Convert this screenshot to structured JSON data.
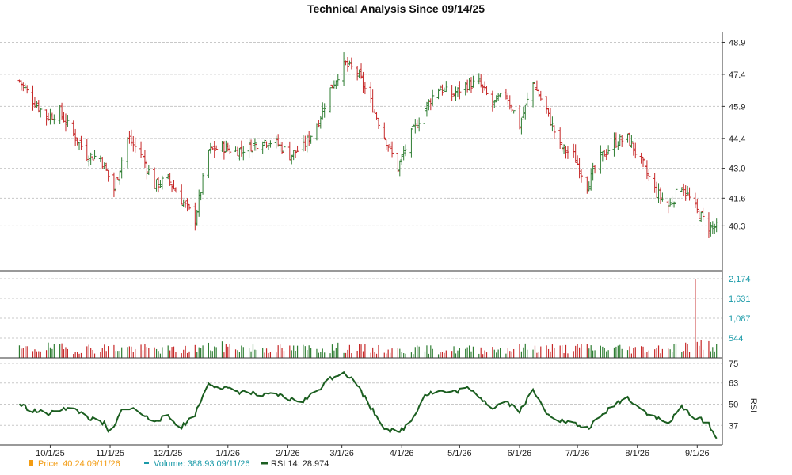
{
  "chart_data": {
    "type": "ohlc",
    "title": "Technical Analysis Since 09/14/25",
    "x_tick_labels": [
      "10/1/25",
      "11/1/25",
      "12/1/25",
      "1/1/26",
      "2/1/26",
      "3/1/26",
      "4/1/26",
      "5/1/26",
      "6/1/26",
      "7/1/26",
      "8/1/26",
      "9/1/26"
    ],
    "price_axis": {
      "ticks": [
        "48.9",
        "47.4",
        "45.9",
        "44.4",
        "43.0",
        "41.6",
        "40.3"
      ],
      "range": [
        38.2,
        49.4
      ]
    },
    "volume_axis": {
      "ticks": [
        "2,174",
        "1,631",
        "1,087",
        "544"
      ],
      "range": [
        0,
        2174
      ]
    },
    "rsi_axis": {
      "label": "RSI",
      "ticks": [
        "75",
        "63",
        "50",
        "37"
      ],
      "range": [
        25,
        75
      ]
    },
    "colors": {
      "up": "#2e7d32",
      "down": "#c62828",
      "volume_line": "#1a9aa8",
      "rsi_line": "#1b5e20",
      "price_legend": "#f39c12"
    },
    "price_series": [
      [
        "9/15/25",
        47.1
      ],
      [
        "9/22/25",
        46.2
      ],
      [
        "9/29/25",
        45.4
      ],
      [
        "10/6/25",
        45.6
      ],
      [
        "10/13/25",
        44.6
      ],
      [
        "10/20/25",
        43.6
      ],
      [
        "10/27/25",
        43.5
      ],
      [
        "11/3/25",
        42.0
      ],
      [
        "11/10/25",
        44.4
      ],
      [
        "11/17/25",
        43.7
      ],
      [
        "11/24/25",
        42.2
      ],
      [
        "12/1/25",
        42.5
      ],
      [
        "12/8/25",
        41.5
      ],
      [
        "12/15/25",
        40.6
      ],
      [
        "12/22/25",
        43.8
      ],
      [
        "12/29/25",
        44.0
      ],
      [
        "1/5/26",
        43.8
      ],
      [
        "1/12/26",
        44.0
      ],
      [
        "1/19/26",
        44.3
      ],
      [
        "1/26/26",
        44.2
      ],
      [
        "2/2/26",
        43.6
      ],
      [
        "2/9/26",
        44.0
      ],
      [
        "2/16/26",
        45.0
      ],
      [
        "2/23/26",
        46.7
      ],
      [
        "3/2/26",
        47.9
      ],
      [
        "3/9/26",
        47.5
      ],
      [
        "3/16/26",
        46.1
      ],
      [
        "3/23/26",
        44.5
      ],
      [
        "3/30/26",
        43.0
      ],
      [
        "4/6/26",
        44.6
      ],
      [
        "4/13/26",
        45.8
      ],
      [
        "4/20/26",
        46.8
      ],
      [
        "4/27/26",
        46.4
      ],
      [
        "5/4/26",
        46.9
      ],
      [
        "5/11/26",
        47.0
      ],
      [
        "5/18/26",
        46.0
      ],
      [
        "5/25/26",
        46.5
      ],
      [
        "6/1/26",
        45.0
      ],
      [
        "6/8/26",
        47.0
      ],
      [
        "6/15/26",
        45.7
      ],
      [
        "6/22/26",
        44.0
      ],
      [
        "6/29/26",
        43.6
      ],
      [
        "7/6/26",
        42.2
      ],
      [
        "7/13/26",
        43.5
      ],
      [
        "7/20/26",
        44.2
      ],
      [
        "7/27/26",
        44.4
      ],
      [
        "8/3/26",
        43.3
      ],
      [
        "8/10/26",
        42.0
      ],
      [
        "8/17/26",
        41.2
      ],
      [
        "8/24/26",
        42.2
      ],
      [
        "8/31/26",
        41.1
      ],
      [
        "9/7/26",
        40.24
      ]
    ],
    "volume_series": [
      [
        "9/15/25",
        250
      ],
      [
        "9/29/25",
        310
      ],
      [
        "10/13/25",
        270
      ],
      [
        "10/27/25",
        290
      ],
      [
        "11/10/25",
        300
      ],
      [
        "11/24/25",
        260
      ],
      [
        "12/8/25",
        240
      ],
      [
        "12/22/25",
        320
      ],
      [
        "1/5/26",
        330
      ],
      [
        "1/19/26",
        280
      ],
      [
        "2/2/26",
        270
      ],
      [
        "2/16/26",
        290
      ],
      [
        "3/2/26",
        300
      ],
      [
        "3/16/26",
        260
      ],
      [
        "3/30/26",
        230
      ],
      [
        "4/13/26",
        250
      ],
      [
        "4/27/26",
        240
      ],
      [
        "5/11/26",
        260
      ],
      [
        "5/25/26",
        270
      ],
      [
        "6/8/26",
        310
      ],
      [
        "6/22/26",
        280
      ],
      [
        "7/6/26",
        300
      ],
      [
        "7/20/26",
        290
      ],
      [
        "8/3/26",
        270
      ],
      [
        "8/17/26",
        310
      ],
      [
        "8/31/26",
        2174
      ],
      [
        "9/11/26",
        388.93
      ]
    ],
    "rsi_series": [
      [
        "9/15/25",
        50
      ],
      [
        "9/22/25",
        46
      ],
      [
        "10/1/25",
        44
      ],
      [
        "10/8/25",
        48
      ],
      [
        "10/15/25",
        46
      ],
      [
        "10/22/25",
        41
      ],
      [
        "10/29/25",
        38
      ],
      [
        "11/1/25",
        30
      ],
      [
        "11/8/25",
        49
      ],
      [
        "11/15/25",
        46
      ],
      [
        "11/22/25",
        40
      ],
      [
        "12/1/25",
        42
      ],
      [
        "12/8/25",
        36
      ],
      [
        "12/15/25",
        44
      ],
      [
        "12/22/25",
        63
      ],
      [
        "12/29/25",
        60
      ],
      [
        "1/5/26",
        58
      ],
      [
        "1/12/26",
        57
      ],
      [
        "1/19/26",
        55
      ],
      [
        "1/26/26",
        56
      ],
      [
        "2/2/26",
        53
      ],
      [
        "2/9/26",
        52
      ],
      [
        "2/16/26",
        58
      ],
      [
        "2/23/26",
        66
      ],
      [
        "3/2/26",
        70
      ],
      [
        "3/9/26",
        62
      ],
      [
        "3/16/26",
        48
      ],
      [
        "3/23/26",
        36
      ],
      [
        "3/30/26",
        32
      ],
      [
        "4/6/26",
        40
      ],
      [
        "4/13/26",
        56
      ],
      [
        "4/20/26",
        58
      ],
      [
        "4/27/26",
        57
      ],
      [
        "5/4/26",
        60
      ],
      [
        "5/11/26",
        55
      ],
      [
        "5/18/26",
        48
      ],
      [
        "5/25/26",
        52
      ],
      [
        "6/1/26",
        46
      ],
      [
        "6/8/26",
        58
      ],
      [
        "6/15/26",
        45
      ],
      [
        "6/22/26",
        40
      ],
      [
        "6/29/26",
        38
      ],
      [
        "7/6/26",
        35
      ],
      [
        "7/13/26",
        42
      ],
      [
        "7/20/26",
        50
      ],
      [
        "7/27/26",
        54
      ],
      [
        "8/3/26",
        47
      ],
      [
        "8/10/26",
        42
      ],
      [
        "8/17/26",
        38
      ],
      [
        "8/24/26",
        48
      ],
      [
        "8/31/26",
        42
      ],
      [
        "9/7/26",
        38
      ],
      [
        "9/11/26",
        28.974
      ]
    ],
    "legend": [
      {
        "key": "price",
        "text": "Price: 40.24  09/11/26"
      },
      {
        "key": "volume",
        "text": "Volume: 388.93  09/11/26"
      },
      {
        "key": "rsi",
        "text": "RSI 14: 28.974"
      }
    ]
  }
}
